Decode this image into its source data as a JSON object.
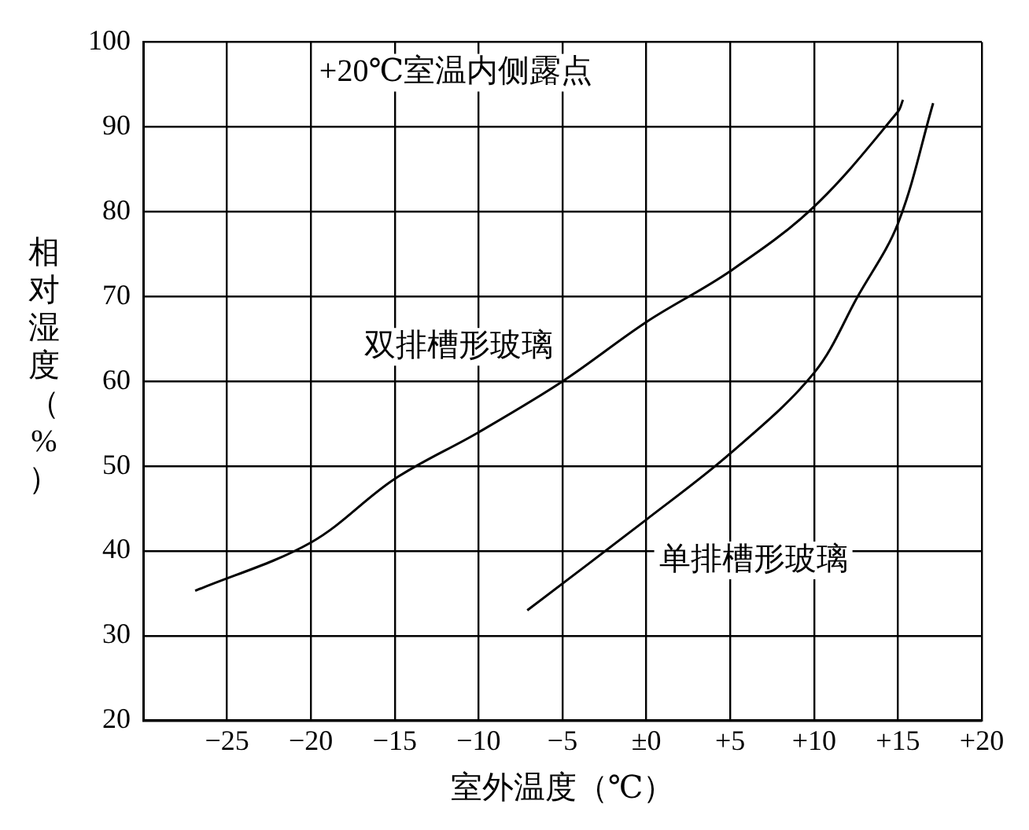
{
  "chart_data": {
    "type": "line",
    "xlabel": "室外温度（℃）",
    "ylabel": "相对湿度（%）",
    "annotations": [
      "+20℃室温内侧露点"
    ],
    "xlim": [
      -30,
      20
    ],
    "xticks": [
      {
        "value": -25,
        "label": "−25"
      },
      {
        "value": -20,
        "label": "−20"
      },
      {
        "value": -15,
        "label": "−15"
      },
      {
        "value": -10,
        "label": "−10"
      },
      {
        "value": -5,
        "label": "−5"
      },
      {
        "value": 0,
        "label": "±0"
      },
      {
        "value": 5,
        "label": "+5"
      },
      {
        "value": 10,
        "label": "+10"
      },
      {
        "value": 15,
        "label": "+15"
      },
      {
        "value": 20,
        "label": "+20"
      }
    ],
    "ylim": [
      20,
      100
    ],
    "yticks": [
      20,
      30,
      40,
      50,
      60,
      70,
      80,
      90,
      100
    ],
    "grid": true,
    "legend": false,
    "marker": "none",
    "line_style": "solid",
    "series": [
      {
        "name": "双排槽形玻璃",
        "color": "#000000",
        "x": [
          -26.9,
          -20,
          -15,
          -10,
          -5,
          0,
          5,
          10,
          15,
          15.3
        ],
        "values": [
          35.3,
          41,
          48.5,
          54,
          60,
          67,
          73,
          80.6,
          91.8,
          93.2
        ]
      },
      {
        "name": "单排槽形玻璃",
        "color": "#000000",
        "x": [
          -7.1,
          0,
          5,
          10,
          12.6,
          15,
          17.1
        ],
        "values": [
          33,
          43.7,
          51.5,
          61,
          70,
          78.6,
          92.8
        ]
      }
    ]
  }
}
